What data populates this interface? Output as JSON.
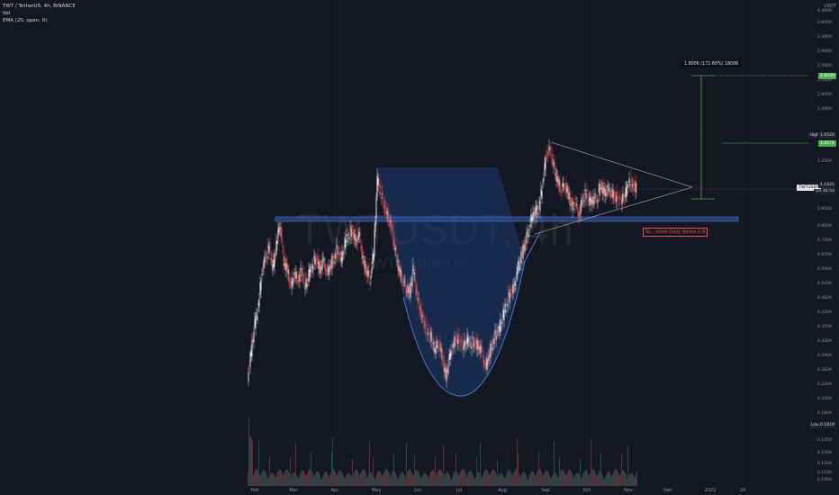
{
  "legend": {
    "symbol_line": "TWT / TetherUS, 4h, BINANCE",
    "vol_line": "Vol",
    "ema_line": "EMA (20, open, 0)"
  },
  "watermark": {
    "main": "TWTUSDT, 4h",
    "sub": "TWT / TetherUS"
  },
  "currency_label": "USDT",
  "price_ticks": [
    "4.4000",
    "3.8000",
    "3.3000",
    "2.9000",
    "2.5000",
    "2.1000",
    "1.8000",
    "1.4000",
    "1.2500",
    "0.9500",
    "0.8500",
    "0.7500",
    "0.6700",
    "0.5900",
    "0.5200",
    "0.4600",
    "0.4200",
    "0.3700",
    "0.3300",
    "0.2900",
    "0.2600",
    "0.2300",
    "0.2000",
    "0.1800",
    "0.1600",
    "0.1450",
    "0.1300",
    "0.1200",
    "0.1100",
    "0.1000"
  ],
  "time_ticks": [
    "Feb",
    "Mar",
    "Apr",
    "May",
    "Jun",
    "Jul",
    "Aug",
    "Sep",
    "Oct",
    "Nov",
    "Dec",
    "2022",
    "24"
  ],
  "tags": {
    "target": "2.8030",
    "high_label": "High",
    "high_value": "1.6520",
    "level2": "1.4571",
    "symbol_tag": "TWTUSDT",
    "last_price": "1.1621",
    "countdown": "02:16:54",
    "low_label": "Low",
    "low_value": "0.1818"
  },
  "measure_label": "1.8006 (172.60%) 18006",
  "stop_loss_text": "SL : close Daily below 0.8",
  "colors": {
    "background": "#131722",
    "candle_up": "#ffffff",
    "candle_down": "#ef5350",
    "cup_fill": "#1e3a6e",
    "cup_stroke": "#4a78c8",
    "support_fill": "#2a4a8a",
    "target_line": "#4caf50",
    "triangle": "#d1d4dc",
    "vol_up": "#26a69a",
    "vol_down": "#ef5350"
  }
}
